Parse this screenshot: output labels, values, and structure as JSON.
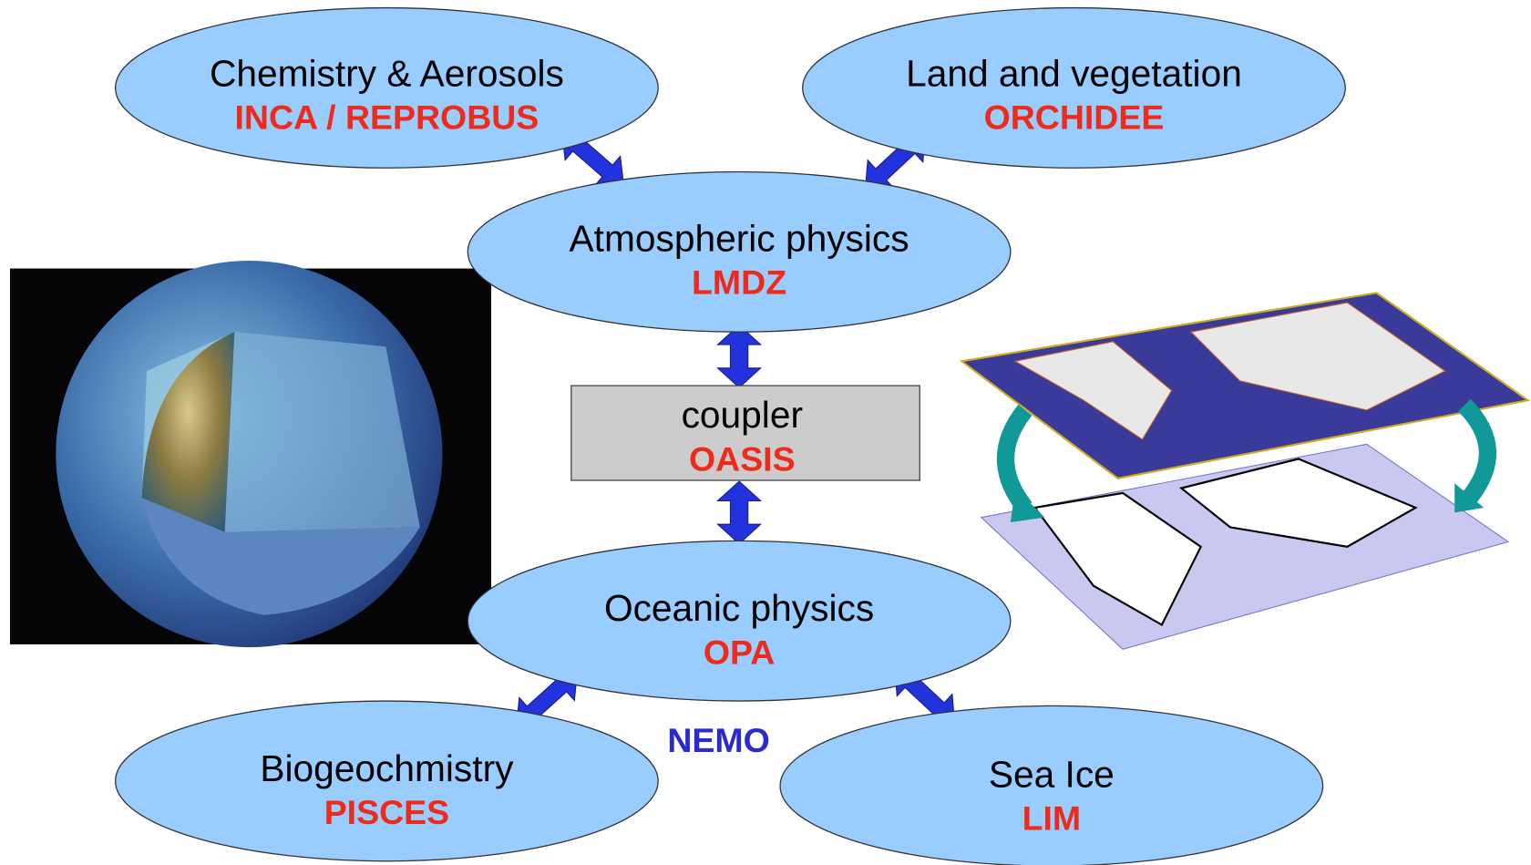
{
  "nodes": [
    {
      "title": "Chemistry & Aerosols",
      "subtitle": "INCA / REPROBUS"
    },
    {
      "title": "Land and vegetation",
      "subtitle": "ORCHIDEE"
    },
    {
      "title": "Atmospheric physics",
      "subtitle": "LMDZ"
    },
    {
      "title": "coupler",
      "subtitle": "OASIS"
    },
    {
      "title": "Oceanic physics",
      "subtitle": "OPA"
    },
    {
      "title": "Biogeochmistry",
      "subtitle": "PISCES"
    },
    {
      "title": "Sea Ice",
      "subtitle": "LIM"
    }
  ],
  "group_label": "NEMO"
}
